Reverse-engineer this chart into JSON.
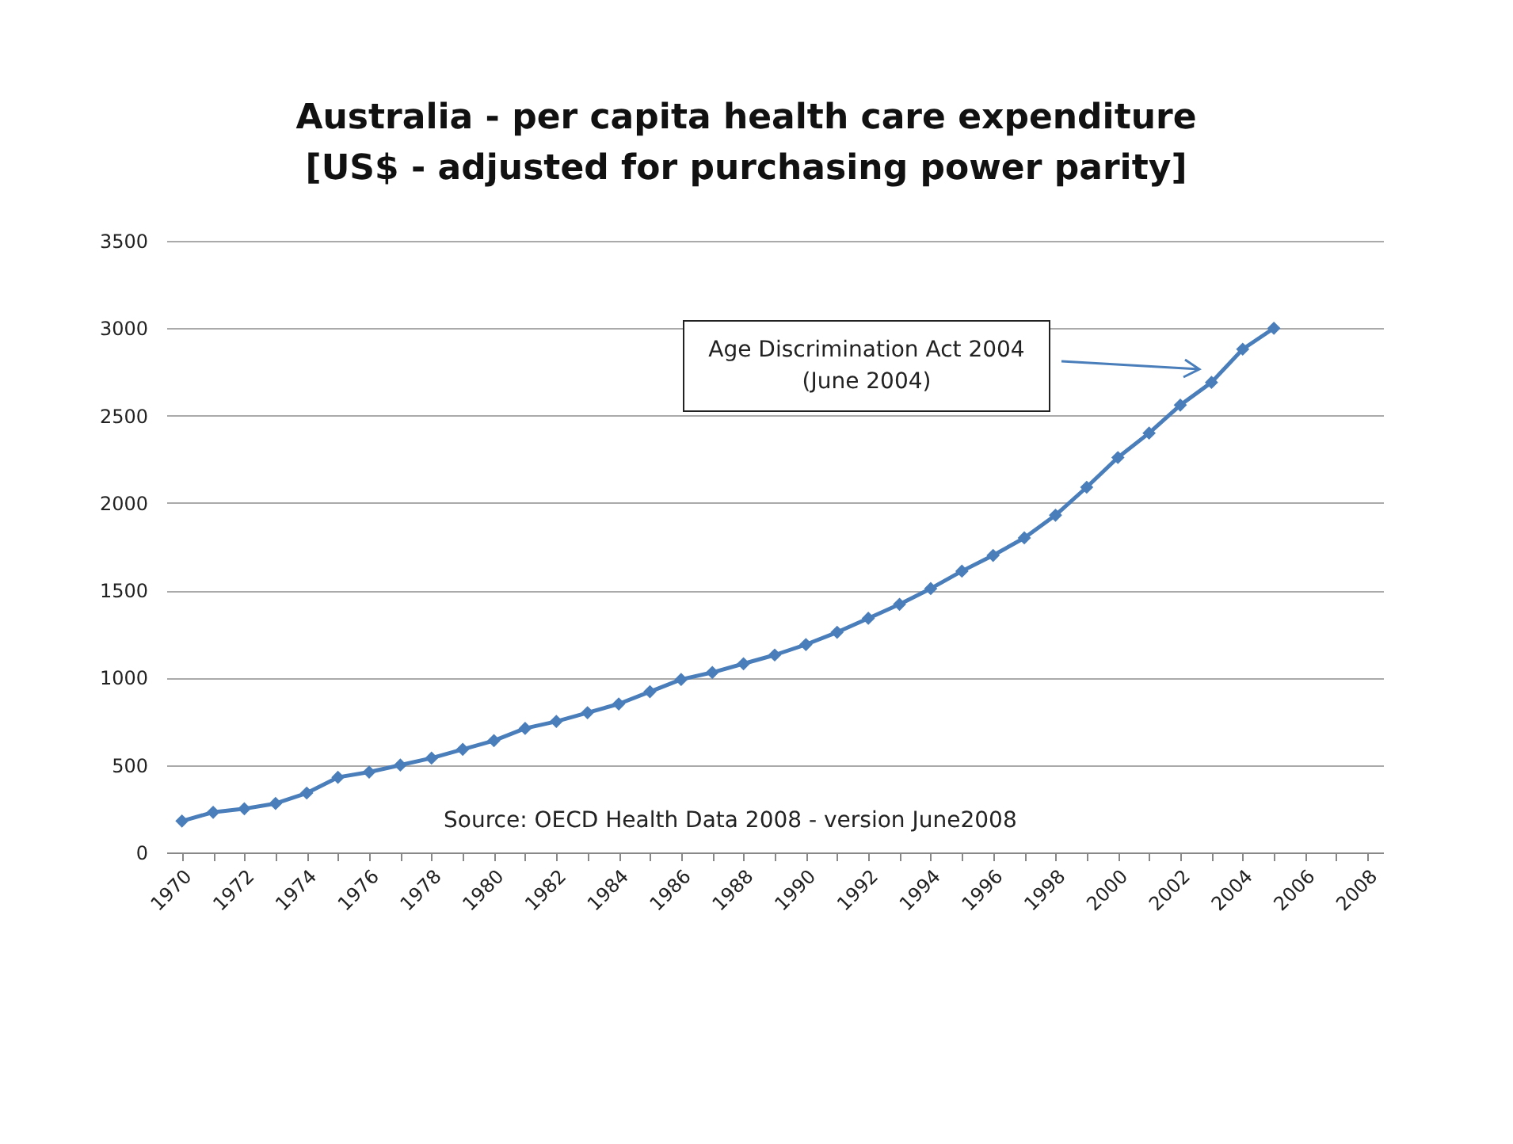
{
  "chart_data": {
    "type": "line",
    "title": "Australia - per capita health care expenditure\n[US$ - adjusted for purchasing power parity]",
    "categories": [
      "1970",
      null,
      "1972",
      null,
      "1974",
      null,
      "1976",
      null,
      "1978",
      null,
      "1980",
      null,
      "1982",
      null,
      "1984",
      null,
      "1986",
      null,
      "1988",
      null,
      "1990",
      null,
      "1992",
      null,
      "1994",
      null,
      "1996",
      null,
      "1998",
      null,
      "2000",
      null,
      "2002",
      null,
      "2004",
      null,
      "2006",
      null,
      "2008"
    ],
    "series": [
      {
        "color": "#4a7ebb",
        "values": [
          180,
          230,
          250,
          280,
          340,
          430,
          460,
          500,
          540,
          590,
          640,
          710,
          750,
          800,
          850,
          920,
          990,
          1030,
          1080,
          1130,
          1190,
          1260,
          1340,
          1420,
          1510,
          1610,
          1700,
          1800,
          1930,
          2090,
          2260,
          2400,
          2560,
          2690,
          2880,
          3000,
          null,
          null,
          null
        ]
      }
    ],
    "ylim": [
      0,
      3500
    ],
    "yticks": [
      0,
      500,
      1000,
      1500,
      2000,
      2500,
      3000,
      3500
    ],
    "grid": "y",
    "marker": "diamond",
    "line_style": "solid",
    "annotations": [
      "Age Discrimination Act 2004\n(June 2004)",
      "Source: OECD Health Data 2008 - version June2008"
    ]
  }
}
